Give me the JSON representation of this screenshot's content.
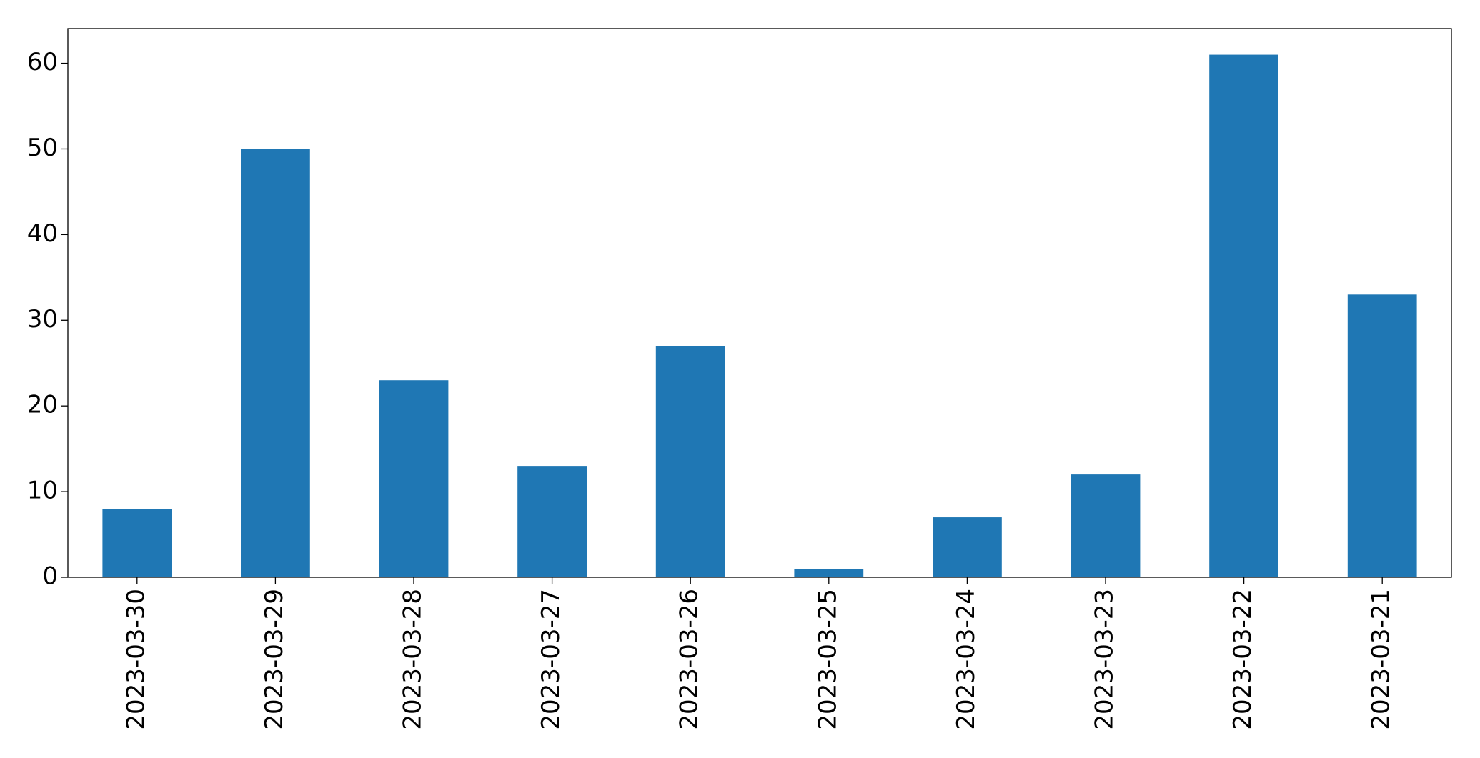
{
  "chart_data": {
    "type": "bar",
    "categories": [
      "2023-03-30",
      "2023-03-29",
      "2023-03-28",
      "2023-03-27",
      "2023-03-26",
      "2023-03-25",
      "2023-03-24",
      "2023-03-23",
      "2023-03-22",
      "2023-03-21"
    ],
    "values": [
      8,
      50,
      23,
      13,
      27,
      1,
      7,
      12,
      61,
      33
    ],
    "color": "#1f77b4",
    "ylim": [
      0,
      64.05
    ],
    "yticks": [
      0,
      10,
      20,
      30,
      40,
      50,
      60
    ],
    "grid": false
  }
}
